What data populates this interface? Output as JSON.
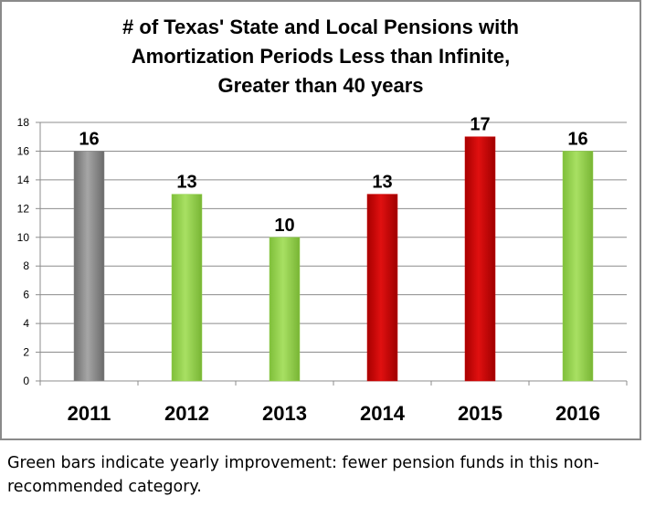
{
  "chart_data": {
    "type": "bar",
    "title_lines": [
      "# of Texas' State and Local Pensions with",
      "Amortization Periods Less than Infinite,",
      "Greater than 40 years"
    ],
    "categories": [
      "2011",
      "2012",
      "2013",
      "2014",
      "2015",
      "2016"
    ],
    "values": [
      16,
      13,
      10,
      13,
      17,
      16
    ],
    "data_labels": [
      "16",
      "13",
      "10",
      "13",
      "17",
      "16"
    ],
    "bar_colors": [
      "#8c8c8c",
      "#92d050",
      "#92d050",
      "#cc0000",
      "#cc0000",
      "#92d050"
    ],
    "ylim": [
      0,
      18
    ],
    "yticks": [
      0,
      2,
      4,
      6,
      8,
      10,
      12,
      14,
      16,
      18
    ],
    "grid": true,
    "legend": "none"
  },
  "caption": "Green bars indicate yearly improvement: fewer pension funds in this non-recommended category."
}
